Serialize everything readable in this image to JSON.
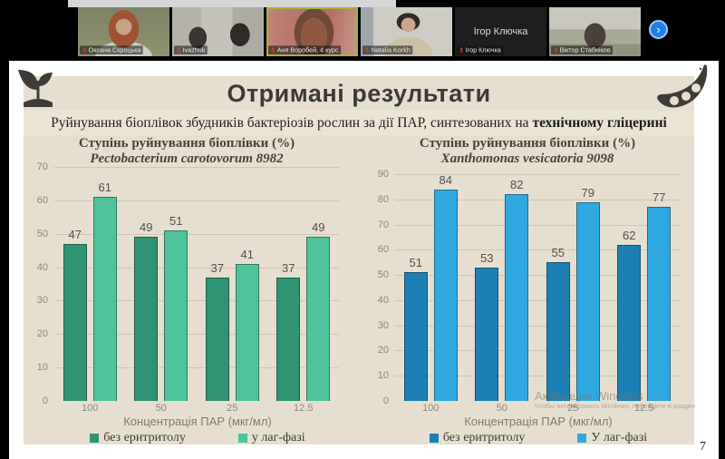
{
  "video_bar": {
    "participants": [
      {
        "name": "Оксана Скроцька",
        "camera": true,
        "active": false
      },
      {
        "name": "Ivazhuk",
        "camera": true,
        "active": false
      },
      {
        "name": "Аня Воробей, 4 курс",
        "camera": true,
        "active": true
      },
      {
        "name": "Natalia Korkh",
        "camera": true,
        "active": false
      },
      {
        "name": "Ігор Ключка",
        "camera": false,
        "active": false
      },
      {
        "name": "Віктор Стабніков",
        "camera": true,
        "active": false
      }
    ],
    "next_button": "›"
  },
  "slide": {
    "title": "Отримані результати",
    "subtitle_regular": "Руйнування біоплівок збудників бактеріозів рослин за дії ПАР, синтезованих на",
    "subtitle_bold": "технічному гліцерині",
    "page_number": "7"
  },
  "watermark": {
    "line1": "Активация Windows",
    "line2": "Чтобы активировать Windows, перейдите в раздел"
  },
  "chart_data": [
    {
      "type": "bar",
      "title": "Ступінь руйнування біоплівки (%)",
      "subtitle": "Pectobacterium carotovorum 8982",
      "categories": [
        "100",
        "50",
        "25",
        "12.5"
      ],
      "series": [
        {
          "name": "без еритритолу",
          "color": "#2e9474",
          "values": [
            47,
            49,
            37,
            37
          ]
        },
        {
          "name": "у лаг-фазі",
          "color": "#4ec39c",
          "values": [
            61,
            51,
            41,
            49
          ]
        }
      ],
      "xlabel": "Концентрація ПАР (мкг/мл)",
      "ylim": [
        0,
        70
      ],
      "ytick_step": 10,
      "grid": true,
      "legend_position": "bottom"
    },
    {
      "type": "bar",
      "title": "Ступінь руйнування біоплівки (%)",
      "subtitle": "Xanthomonas vesicatoria 9098",
      "categories": [
        "100",
        "50",
        "25",
        "12.5"
      ],
      "series": [
        {
          "name": "без еритритолу",
          "color": "#1c80b4",
          "values": [
            51,
            53,
            55,
            62
          ]
        },
        {
          "name": "У лаг-фазі",
          "color": "#2fa9e1",
          "values": [
            84,
            82,
            79,
            77
          ]
        }
      ],
      "xlabel": "Концентрація ПАР (мкг/мл)",
      "ylim": [
        0,
        90
      ],
      "ytick_step": 10,
      "grid": true,
      "legend_position": "bottom"
    }
  ]
}
